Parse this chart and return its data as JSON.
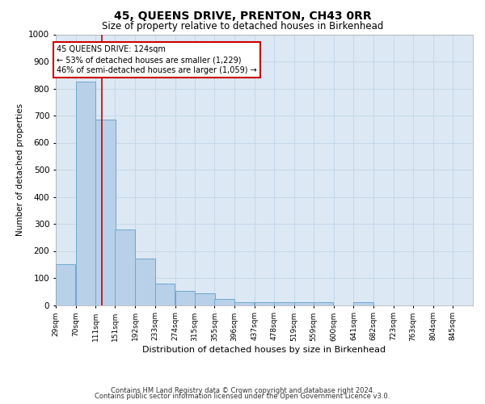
{
  "title": "45, QUEENS DRIVE, PRENTON, CH43 0RR",
  "subtitle": "Size of property relative to detached houses in Birkenhead",
  "xlabel": "Distribution of detached houses by size in Birkenhead",
  "ylabel": "Number of detached properties",
  "footnote1": "Contains HM Land Registry data © Crown copyright and database right 2024.",
  "footnote2": "Contains public sector information licensed under the Open Government Licence v3.0.",
  "bar_labels": [
    "29sqm",
    "70sqm",
    "111sqm",
    "151sqm",
    "192sqm",
    "233sqm",
    "274sqm",
    "315sqm",
    "355sqm",
    "396sqm",
    "437sqm",
    "478sqm",
    "519sqm",
    "559sqm",
    "600sqm",
    "641sqm",
    "682sqm",
    "723sqm",
    "763sqm",
    "804sqm",
    "845sqm"
  ],
  "bar_values": [
    150,
    825,
    685,
    280,
    172,
    78,
    52,
    42,
    22,
    10,
    10,
    10,
    10,
    10,
    0,
    10,
    0,
    0,
    0,
    0,
    0
  ],
  "bar_color": "#b8d0e8",
  "bar_edge_color": "#6fa8d0",
  "grid_color": "#c5d8ea",
  "background_color": "#dce8f3",
  "annotation_box_text": "45 QUEENS DRIVE: 124sqm\n← 53% of detached houses are smaller (1,229)\n46% of semi-detached houses are larger (1,059) →",
  "annotation_box_color": "#cc0000",
  "vline_x": 124,
  "vline_color": "#cc0000",
  "ylim": [
    0,
    1000
  ],
  "yticks": [
    0,
    100,
    200,
    300,
    400,
    500,
    600,
    700,
    800,
    900,
    1000
  ],
  "bin_width": 41,
  "title_fontsize": 10,
  "subtitle_fontsize": 8.5,
  "ylabel_fontsize": 7.5,
  "xlabel_fontsize": 8,
  "ytick_fontsize": 7.5,
  "xtick_fontsize": 6.5,
  "annot_fontsize": 7,
  "footnote_fontsize": 6
}
